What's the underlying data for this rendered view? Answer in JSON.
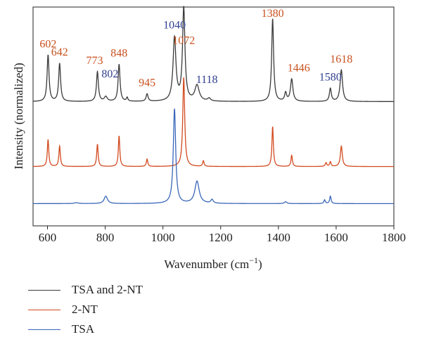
{
  "chart_data": {
    "type": "line",
    "xlabel": "Wavenumber (cm",
    "xlabel_sup": "−1",
    "xlabel_end": ")",
    "ylabel": "Intensity (normalized)",
    "xlim": [
      550,
      1800
    ],
    "xticks": [
      600,
      800,
      1000,
      1200,
      1400,
      1600,
      1800
    ],
    "yticks_shown": false,
    "legend_position": "below",
    "series": [
      {
        "name": "TSA and 2-NT",
        "color": "#3a3a3a",
        "baseline": 0.67,
        "peaks": [
          [
            602,
            0.5,
            4
          ],
          [
            642,
            0.41,
            4
          ],
          [
            773,
            0.32,
            4
          ],
          [
            802,
            0.05,
            6
          ],
          [
            848,
            0.4,
            4
          ],
          [
            876,
            0.04,
            3
          ],
          [
            945,
            0.08,
            4
          ],
          [
            1040,
            0.68,
            6
          ],
          [
            1072,
            1.0,
            5
          ],
          [
            1118,
            0.17,
            9
          ],
          [
            1160,
            0.03,
            6
          ],
          [
            1380,
            0.89,
            4
          ],
          [
            1425,
            0.09,
            4
          ],
          [
            1446,
            0.24,
            5
          ],
          [
            1580,
            0.14,
            4
          ],
          [
            1618,
            0.34,
            5
          ]
        ]
      },
      {
        "name": "2-NT",
        "color": "#d24a1f",
        "baseline": 0.32,
        "peaks": [
          [
            602,
            0.29,
            3
          ],
          [
            642,
            0.22,
            3
          ],
          [
            773,
            0.24,
            3
          ],
          [
            848,
            0.33,
            3
          ],
          [
            945,
            0.08,
            3
          ],
          [
            1072,
            0.96,
            4
          ],
          [
            1140,
            0.06,
            3
          ],
          [
            1380,
            0.43,
            3
          ],
          [
            1446,
            0.12,
            3
          ],
          [
            1565,
            0.04,
            3
          ],
          [
            1580,
            0.05,
            3
          ],
          [
            1618,
            0.22,
            4
          ]
        ]
      },
      {
        "name": "TSA",
        "color": "#3a66b8",
        "baseline": 0.12,
        "peaks": [
          [
            700,
            0.01,
            8
          ],
          [
            802,
            0.08,
            7
          ],
          [
            1040,
            1.02,
            5
          ],
          [
            1118,
            0.24,
            9
          ],
          [
            1170,
            0.04,
            5
          ],
          [
            1425,
            0.02,
            5
          ],
          [
            1560,
            0.04,
            3
          ],
          [
            1580,
            0.08,
            3
          ]
        ]
      }
    ],
    "annotations": [
      {
        "text": "602",
        "x": 602,
        "color": "#c8501e"
      },
      {
        "text": "642",
        "x": 642,
        "color": "#c8501e"
      },
      {
        "text": "773",
        "x": 773,
        "color": "#c8501e"
      },
      {
        "text": "802",
        "x": 802,
        "color": "#2f3f8f"
      },
      {
        "text": "848",
        "x": 848,
        "color": "#c8501e"
      },
      {
        "text": "945",
        "x": 945,
        "color": "#c8501e"
      },
      {
        "text": "1040",
        "x": 1040,
        "color": "#2f3f8f"
      },
      {
        "text": "1072",
        "x": 1072,
        "color": "#c8501e"
      },
      {
        "text": "1118",
        "x": 1118,
        "color": "#2f3f8f"
      },
      {
        "text": "1380",
        "x": 1380,
        "color": "#c8501e"
      },
      {
        "text": "1446",
        "x": 1446,
        "color": "#c8501e"
      },
      {
        "text": "1580",
        "x": 1580,
        "color": "#2f3f8f"
      },
      {
        "text": "1618",
        "x": 1618,
        "color": "#c8501e"
      }
    ]
  }
}
